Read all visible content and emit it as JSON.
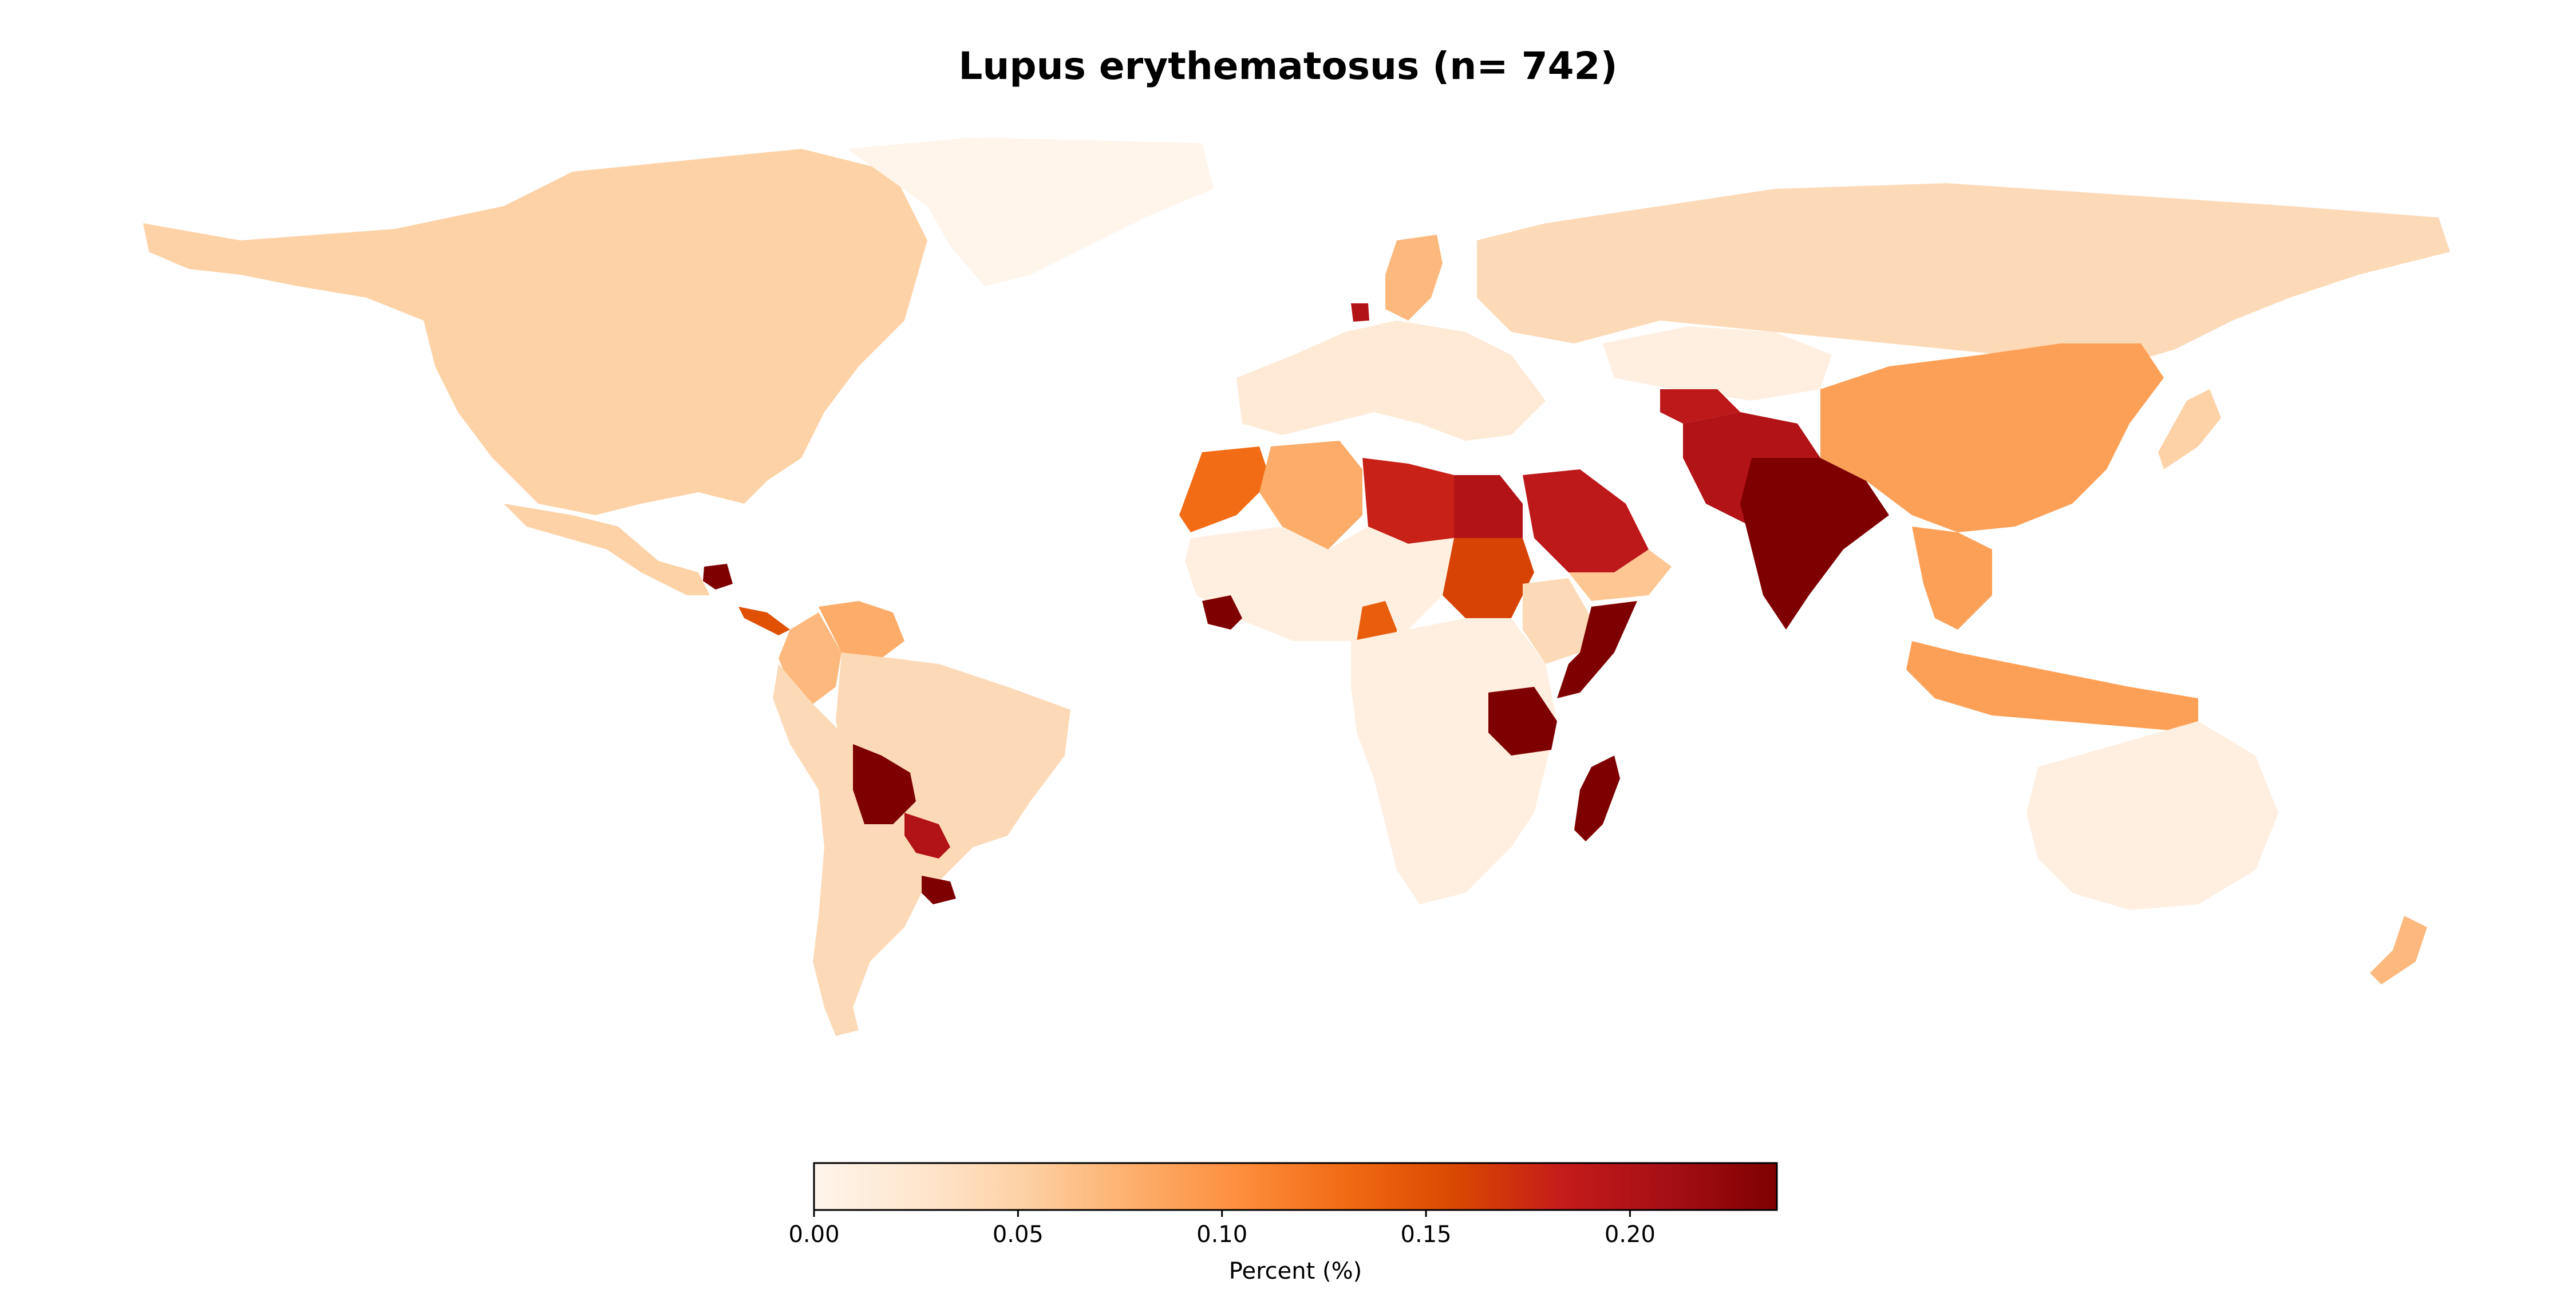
{
  "title": "Lupus erythematosus (n= 742)",
  "colorbar": {
    "label": "Percent (%)",
    "min": 0.0,
    "max": 0.236,
    "ticks": [
      {
        "value": 0.0,
        "label": "0.00"
      },
      {
        "value": 0.05,
        "label": "0.05"
      },
      {
        "value": 0.1,
        "label": "0.10"
      },
      {
        "value": 0.15,
        "label": "0.15"
      },
      {
        "value": 0.2,
        "label": "0.20"
      }
    ],
    "colormap": [
      "#fff5eb",
      "#fee6ce",
      "#fdd0a2",
      "#fdae6b",
      "#fd8d3c",
      "#f16913",
      "#d94801",
      "#c51b1b",
      "#a50f15",
      "#7f0000"
    ]
  },
  "map_data": {
    "type": "choropleth",
    "metric": "Percent (%)",
    "regions": [
      {
        "id": "north-america",
        "value": 0.05
      },
      {
        "id": "greenland",
        "value": 0.0
      },
      {
        "id": "mexico",
        "value": 0.05
      },
      {
        "id": "guatemala",
        "value": 0.236
      },
      {
        "id": "central-america",
        "value": 0.15
      },
      {
        "id": "venezuela",
        "value": 0.08
      },
      {
        "id": "colombia",
        "value": 0.07
      },
      {
        "id": "brazil",
        "value": 0.04
      },
      {
        "id": "bolivia",
        "value": 0.236
      },
      {
        "id": "paraguay",
        "value": 0.2
      },
      {
        "id": "uruguay",
        "value": 0.236
      },
      {
        "id": "argentina-chile",
        "value": 0.04
      },
      {
        "id": "europe",
        "value": 0.02
      },
      {
        "id": "sweden",
        "value": 0.07
      },
      {
        "id": "denmark",
        "value": 0.2
      },
      {
        "id": "russia",
        "value": 0.04
      },
      {
        "id": "kazakhstan",
        "value": 0.01
      },
      {
        "id": "morocco",
        "value": 0.13
      },
      {
        "id": "algeria",
        "value": 0.08
      },
      {
        "id": "libya",
        "value": 0.18
      },
      {
        "id": "egypt",
        "value": 0.2
      },
      {
        "id": "sudan",
        "value": 0.16
      },
      {
        "id": "west-africa",
        "value": 0.01
      },
      {
        "id": "guinea",
        "value": 0.236
      },
      {
        "id": "cameroon",
        "value": 0.14
      },
      {
        "id": "central-southern-africa",
        "value": 0.01
      },
      {
        "id": "somalia",
        "value": 0.236
      },
      {
        "id": "ethiopia",
        "value": 0.04
      },
      {
        "id": "tanzania",
        "value": 0.236
      },
      {
        "id": "madagascar",
        "value": 0.236
      },
      {
        "id": "saudi-arabia",
        "value": 0.19
      },
      {
        "id": "yemen",
        "value": 0.06
      },
      {
        "id": "iran-afghanistan",
        "value": 0.2
      },
      {
        "id": "pakistan",
        "value": 0.19
      },
      {
        "id": "india",
        "value": 0.236
      },
      {
        "id": "china",
        "value": 0.09
      },
      {
        "id": "southeast-asia",
        "value": 0.09
      },
      {
        "id": "indonesia",
        "value": 0.09
      },
      {
        "id": "australia",
        "value": 0.01
      },
      {
        "id": "new-zealand",
        "value": 0.07
      },
      {
        "id": "japan",
        "value": 0.05
      }
    ]
  }
}
